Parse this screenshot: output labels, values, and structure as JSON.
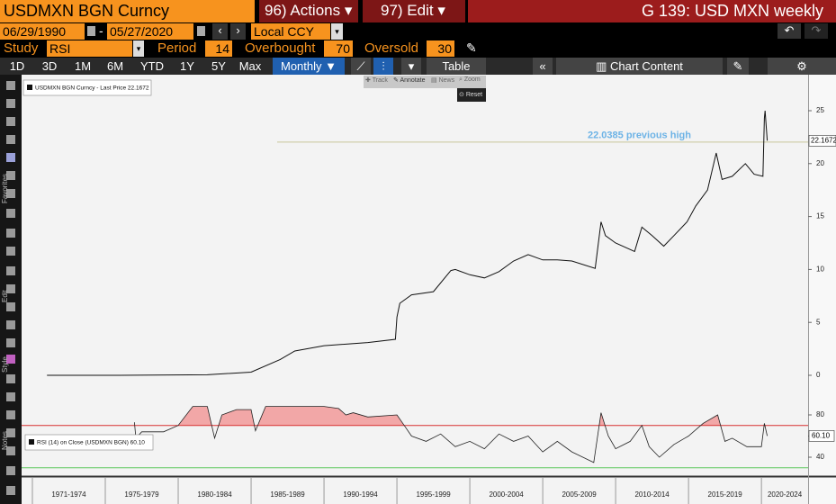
{
  "header": {
    "security": "USDMXN BGN Curncy",
    "actions": "96) Actions",
    "edit": "97) Edit",
    "function": "G 139: USD MXN weekly"
  },
  "controls": {
    "start_date": "06/29/1990",
    "end_date": "05/27/2020",
    "currency": "Local CCY",
    "study_label": "Study",
    "study": "RSI",
    "period_label": "Period",
    "period": 14,
    "overbought_label": "Overbought",
    "overbought": 70,
    "oversold_label": "Oversold",
    "oversold": 30
  },
  "toolbar": {
    "ranges": [
      "1D",
      "3D",
      "1M",
      "6M",
      "YTD",
      "1Y",
      "5Y",
      "Max"
    ],
    "frequency": "Monthly",
    "table": "Table",
    "chart_content": "Chart Content"
  },
  "chart_tools": [
    "Track",
    "Annotate",
    "News",
    "Zoom"
  ],
  "reset": "Reset",
  "side_labels": [
    "Favorites",
    "Edit",
    "Style",
    "Notes"
  ],
  "chart_data": {
    "type": "line",
    "legend": "USDMXN BGN Curncy - Last Price 22.1672",
    "xlim": [
      1969.26,
      2023.2
    ],
    "xticks": [
      {
        "value": 1970,
        "label": "1971-1974"
      },
      {
        "value": 1975,
        "label": "1975-1979"
      },
      {
        "value": 1980,
        "label": "1980-1984"
      },
      {
        "value": 1985,
        "label": "1985-1989"
      },
      {
        "value": 1990,
        "label": "1990-1994"
      },
      {
        "value": 1995,
        "label": "1995-1999"
      },
      {
        "value": 2000,
        "label": "2000-2004"
      },
      {
        "value": 2005,
        "label": "2005-2009"
      },
      {
        "value": 2010,
        "label": "2010-2014"
      },
      {
        "value": 2015,
        "label": "2015-2019"
      },
      {
        "value": 2020,
        "label": "2020-2024"
      }
    ],
    "ylim": [
      -2.55,
      28.4
    ],
    "yticks": [
      0,
      5,
      10,
      15,
      20,
      25
    ],
    "price": {
      "color": "#111111",
      "x": [
        1971,
        1976,
        1982,
        1985,
        1987,
        1988,
        1990,
        1993,
        1994.9,
        1995,
        1995.2,
        1996,
        1997.5,
        1998.7,
        1999,
        2000,
        2001,
        2002,
        2003,
        2004,
        2005,
        2006,
        2007,
        2008.6,
        2009,
        2009.3,
        2010,
        2011.3,
        2011.8,
        2012.5,
        2013.3,
        2014,
        2014.9,
        2015.5,
        2016.3,
        2016.9,
        2017.3,
        2018,
        2018.9,
        2019.5,
        2020.1,
        2020.2,
        2020.25,
        2020.4
      ],
      "values": [
        0,
        0,
        0.05,
        0.3,
        1.5,
        2.3,
        2.8,
        3.1,
        3.4,
        5.5,
        6.8,
        7.6,
        7.9,
        9.9,
        10.0,
        9.5,
        9.2,
        9.8,
        10.8,
        11.4,
        10.9,
        10.9,
        10.8,
        10.1,
        14.5,
        13.2,
        12.5,
        11.7,
        14.0,
        13.2,
        12.2,
        13.2,
        14.5,
        16,
        17.5,
        21.0,
        18.5,
        18.8,
        20.0,
        19.0,
        18.8,
        24.3,
        25.0,
        22.1672
      ],
      "last_label": "22.1672"
    },
    "annotation": {
      "text": "22.0385 previous high",
      "value": 22.0385,
      "color": "#c9c79a",
      "text_color": "#6db3e6"
    },
    "rsi": {
      "legend": "RSI (14)  on Close (USDMXN BGN) 60.10",
      "color": "#222222",
      "fill": "#f2a7a7",
      "ylim": [
        21.3,
        90.2
      ],
      "yticks": [
        40,
        60,
        80
      ],
      "x": [
        1977,
        1977.1,
        1977.5,
        1979,
        1980,
        1981,
        1982,
        1982.5,
        1983,
        1984,
        1985,
        1985.3,
        1986,
        1989,
        1990,
        1991,
        1991.5,
        1992,
        1993,
        1995,
        1995.5,
        1996,
        1997,
        1998,
        1999,
        2000,
        2001,
        2002,
        2003,
        2004,
        2005,
        2006,
        2007,
        2008.5,
        2009,
        2009.5,
        2010,
        2011,
        2011.8,
        2012.3,
        2013,
        2014,
        2015,
        2016,
        2017,
        2017.5,
        2018,
        2019,
        2020,
        2020.2,
        2020.4
      ],
      "values": [
        73,
        58,
        64,
        64,
        70,
        88,
        88,
        58,
        80,
        85,
        85,
        65,
        88,
        88,
        88,
        86,
        80,
        82,
        78,
        80,
        70,
        60,
        55,
        62,
        50,
        55,
        48,
        62,
        55,
        60,
        45,
        55,
        45,
        35,
        82,
        60,
        48,
        55,
        70,
        50,
        40,
        52,
        60,
        72,
        80,
        55,
        58,
        50,
        50,
        72,
        60.1
      ],
      "last_label": "60.10",
      "overbought_color": "#d83030",
      "oversold_color": "#5cc85c"
    }
  }
}
